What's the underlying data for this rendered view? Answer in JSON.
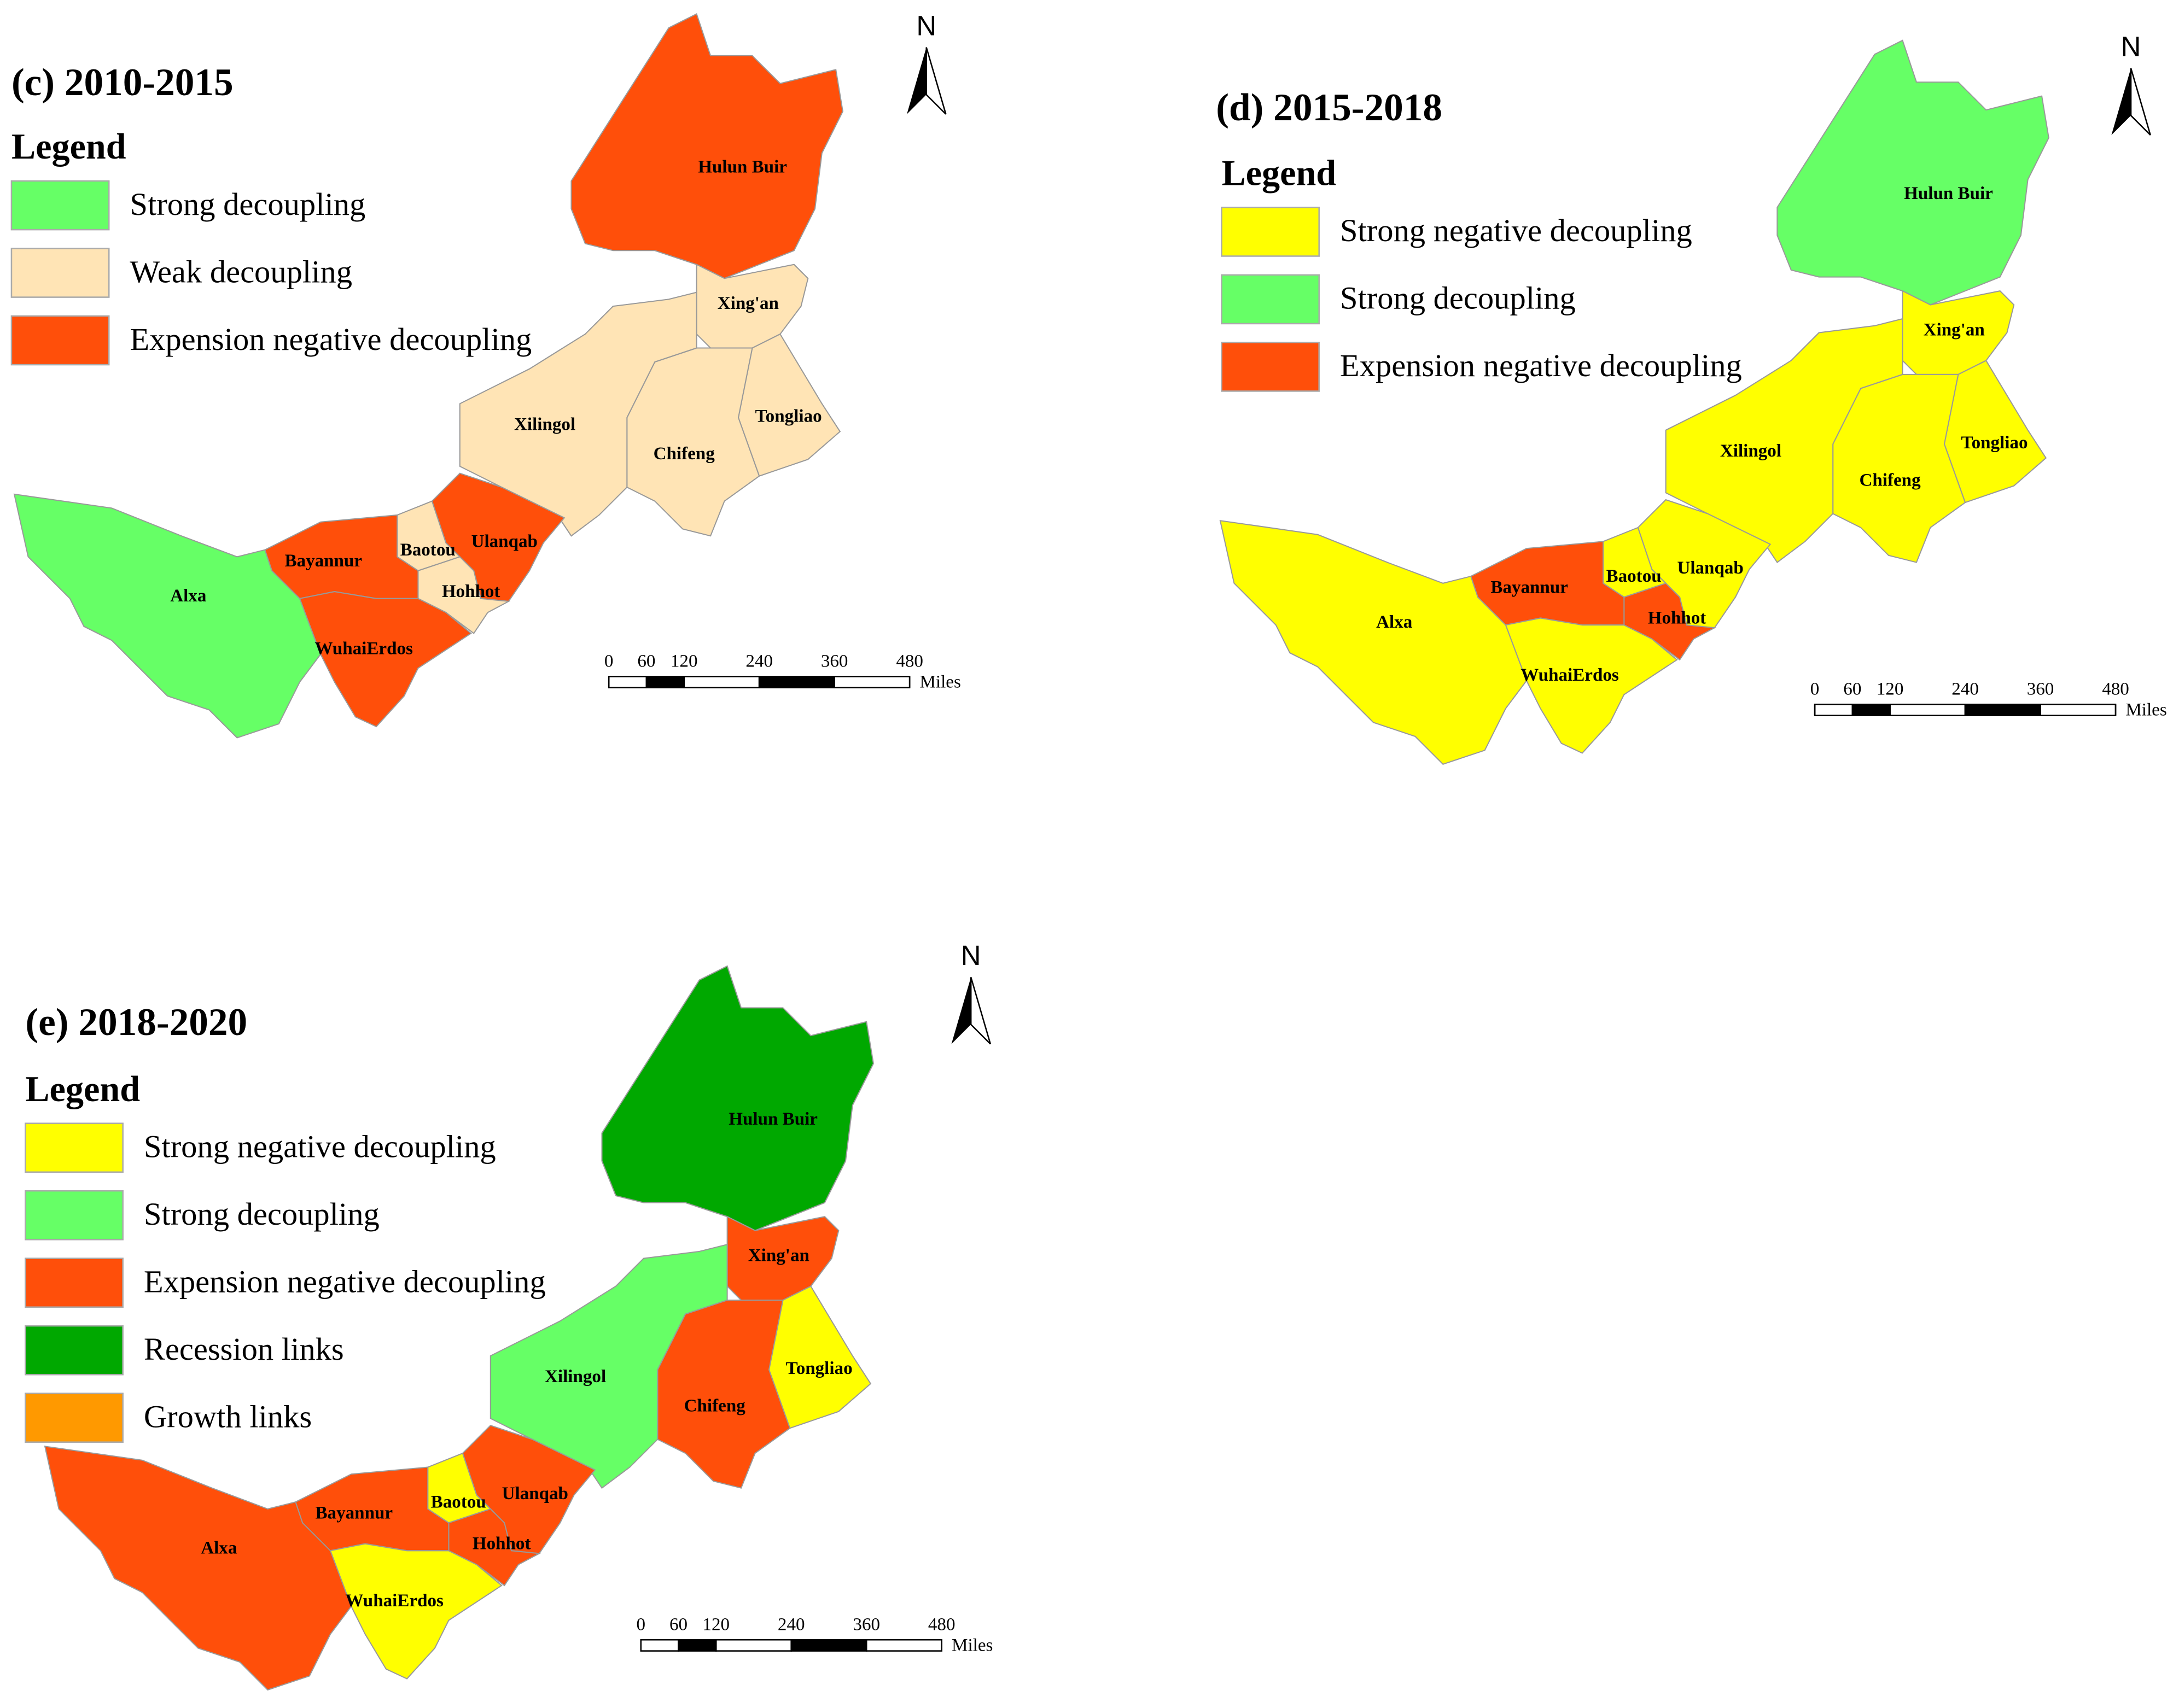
{
  "panels": [
    {
      "title": "(c) 2010-2015",
      "legend_title": "Legend",
      "legend": [
        {
          "label": "Strong decoupling",
          "color": "#66ff66"
        },
        {
          "label": "Weak decoupling",
          "color": "#ffe4b5"
        },
        {
          "label": "Expension negative decoupling",
          "color": "#ff4f0a"
        }
      ],
      "regions": [
        {
          "name": "Hulun Buir",
          "color": "#ff4f0a"
        },
        {
          "name": "Xing'an",
          "color": "#ffe4b5"
        },
        {
          "name": "Tongliao",
          "color": "#ffe4b5"
        },
        {
          "name": "Chifeng",
          "color": "#ffe4b5"
        },
        {
          "name": "Xilingol",
          "color": "#ffe4b5"
        },
        {
          "name": "Ulanqab",
          "color": "#ff4f0a"
        },
        {
          "name": "Baotou",
          "color": "#ffe4b5"
        },
        {
          "name": "Hohhot",
          "color": "#ffe4b5"
        },
        {
          "name": "Bayannur",
          "color": "#ff4f0a"
        },
        {
          "name": "WuhaiErdos",
          "color": "#ff4f0a"
        },
        {
          "name": "Alxa",
          "color": "#66ff66"
        }
      ],
      "scale_ticks": [
        0,
        60,
        120,
        240,
        360,
        480
      ],
      "scale_unit": "Miles",
      "north": "N"
    },
    {
      "title": "(d) 2015-2018",
      "legend_title": "Legend",
      "legend": [
        {
          "label": "Strong negative decoupling",
          "color": "#ffff00"
        },
        {
          "label": "Strong decoupling",
          "color": "#66ff66"
        },
        {
          "label": "Expension negative decoupling",
          "color": "#ff4f0a"
        }
      ],
      "regions": [
        {
          "name": "Hulun Buir",
          "color": "#66ff66"
        },
        {
          "name": "Xing'an",
          "color": "#ffff00"
        },
        {
          "name": "Tongliao",
          "color": "#ffff00"
        },
        {
          "name": "Chifeng",
          "color": "#ffff00"
        },
        {
          "name": "Xilingol",
          "color": "#ffff00"
        },
        {
          "name": "Ulanqab",
          "color": "#ffff00"
        },
        {
          "name": "Baotou",
          "color": "#ffff00"
        },
        {
          "name": "Hohhot",
          "color": "#ff4f0a"
        },
        {
          "name": "Bayannur",
          "color": "#ff4f0a"
        },
        {
          "name": "WuhaiErdos",
          "color": "#ffff00"
        },
        {
          "name": "Alxa",
          "color": "#ffff00"
        }
      ],
      "scale_ticks": [
        0,
        60,
        120,
        240,
        360,
        480
      ],
      "scale_unit": "Miles",
      "north": "N"
    },
    {
      "title": "(e) 2018-2020",
      "legend_title": "Legend",
      "legend": [
        {
          "label": "Strong negative decoupling",
          "color": "#ffff00"
        },
        {
          "label": "Strong decoupling",
          "color": "#66ff66"
        },
        {
          "label": "Expension negative decoupling",
          "color": "#ff4f0a"
        },
        {
          "label": "Recession links",
          "color": "#00a800"
        },
        {
          "label": "Growth links",
          "color": "#ff9900"
        }
      ],
      "regions": [
        {
          "name": "Hulun Buir",
          "color": "#00a800"
        },
        {
          "name": "Xing'an",
          "color": "#ff4f0a"
        },
        {
          "name": "Tongliao",
          "color": "#ffff00"
        },
        {
          "name": "Chifeng",
          "color": "#ff4f0a"
        },
        {
          "name": "Xilingol",
          "color": "#66ff66"
        },
        {
          "name": "Ulanqab",
          "color": "#ff4f0a"
        },
        {
          "name": "Baotou",
          "color": "#ffff00"
        },
        {
          "name": "Hohhot",
          "color": "#ff4f0a"
        },
        {
          "name": "Bayannur",
          "color": "#ff4f0a"
        },
        {
          "name": "WuhaiErdos",
          "color": "#ffff00"
        },
        {
          "name": "Alxa",
          "color": "#ff4f0a"
        }
      ],
      "scale_ticks": [
        0,
        60,
        120,
        240,
        360,
        480
      ],
      "scale_unit": "Miles",
      "north": "N"
    }
  ]
}
